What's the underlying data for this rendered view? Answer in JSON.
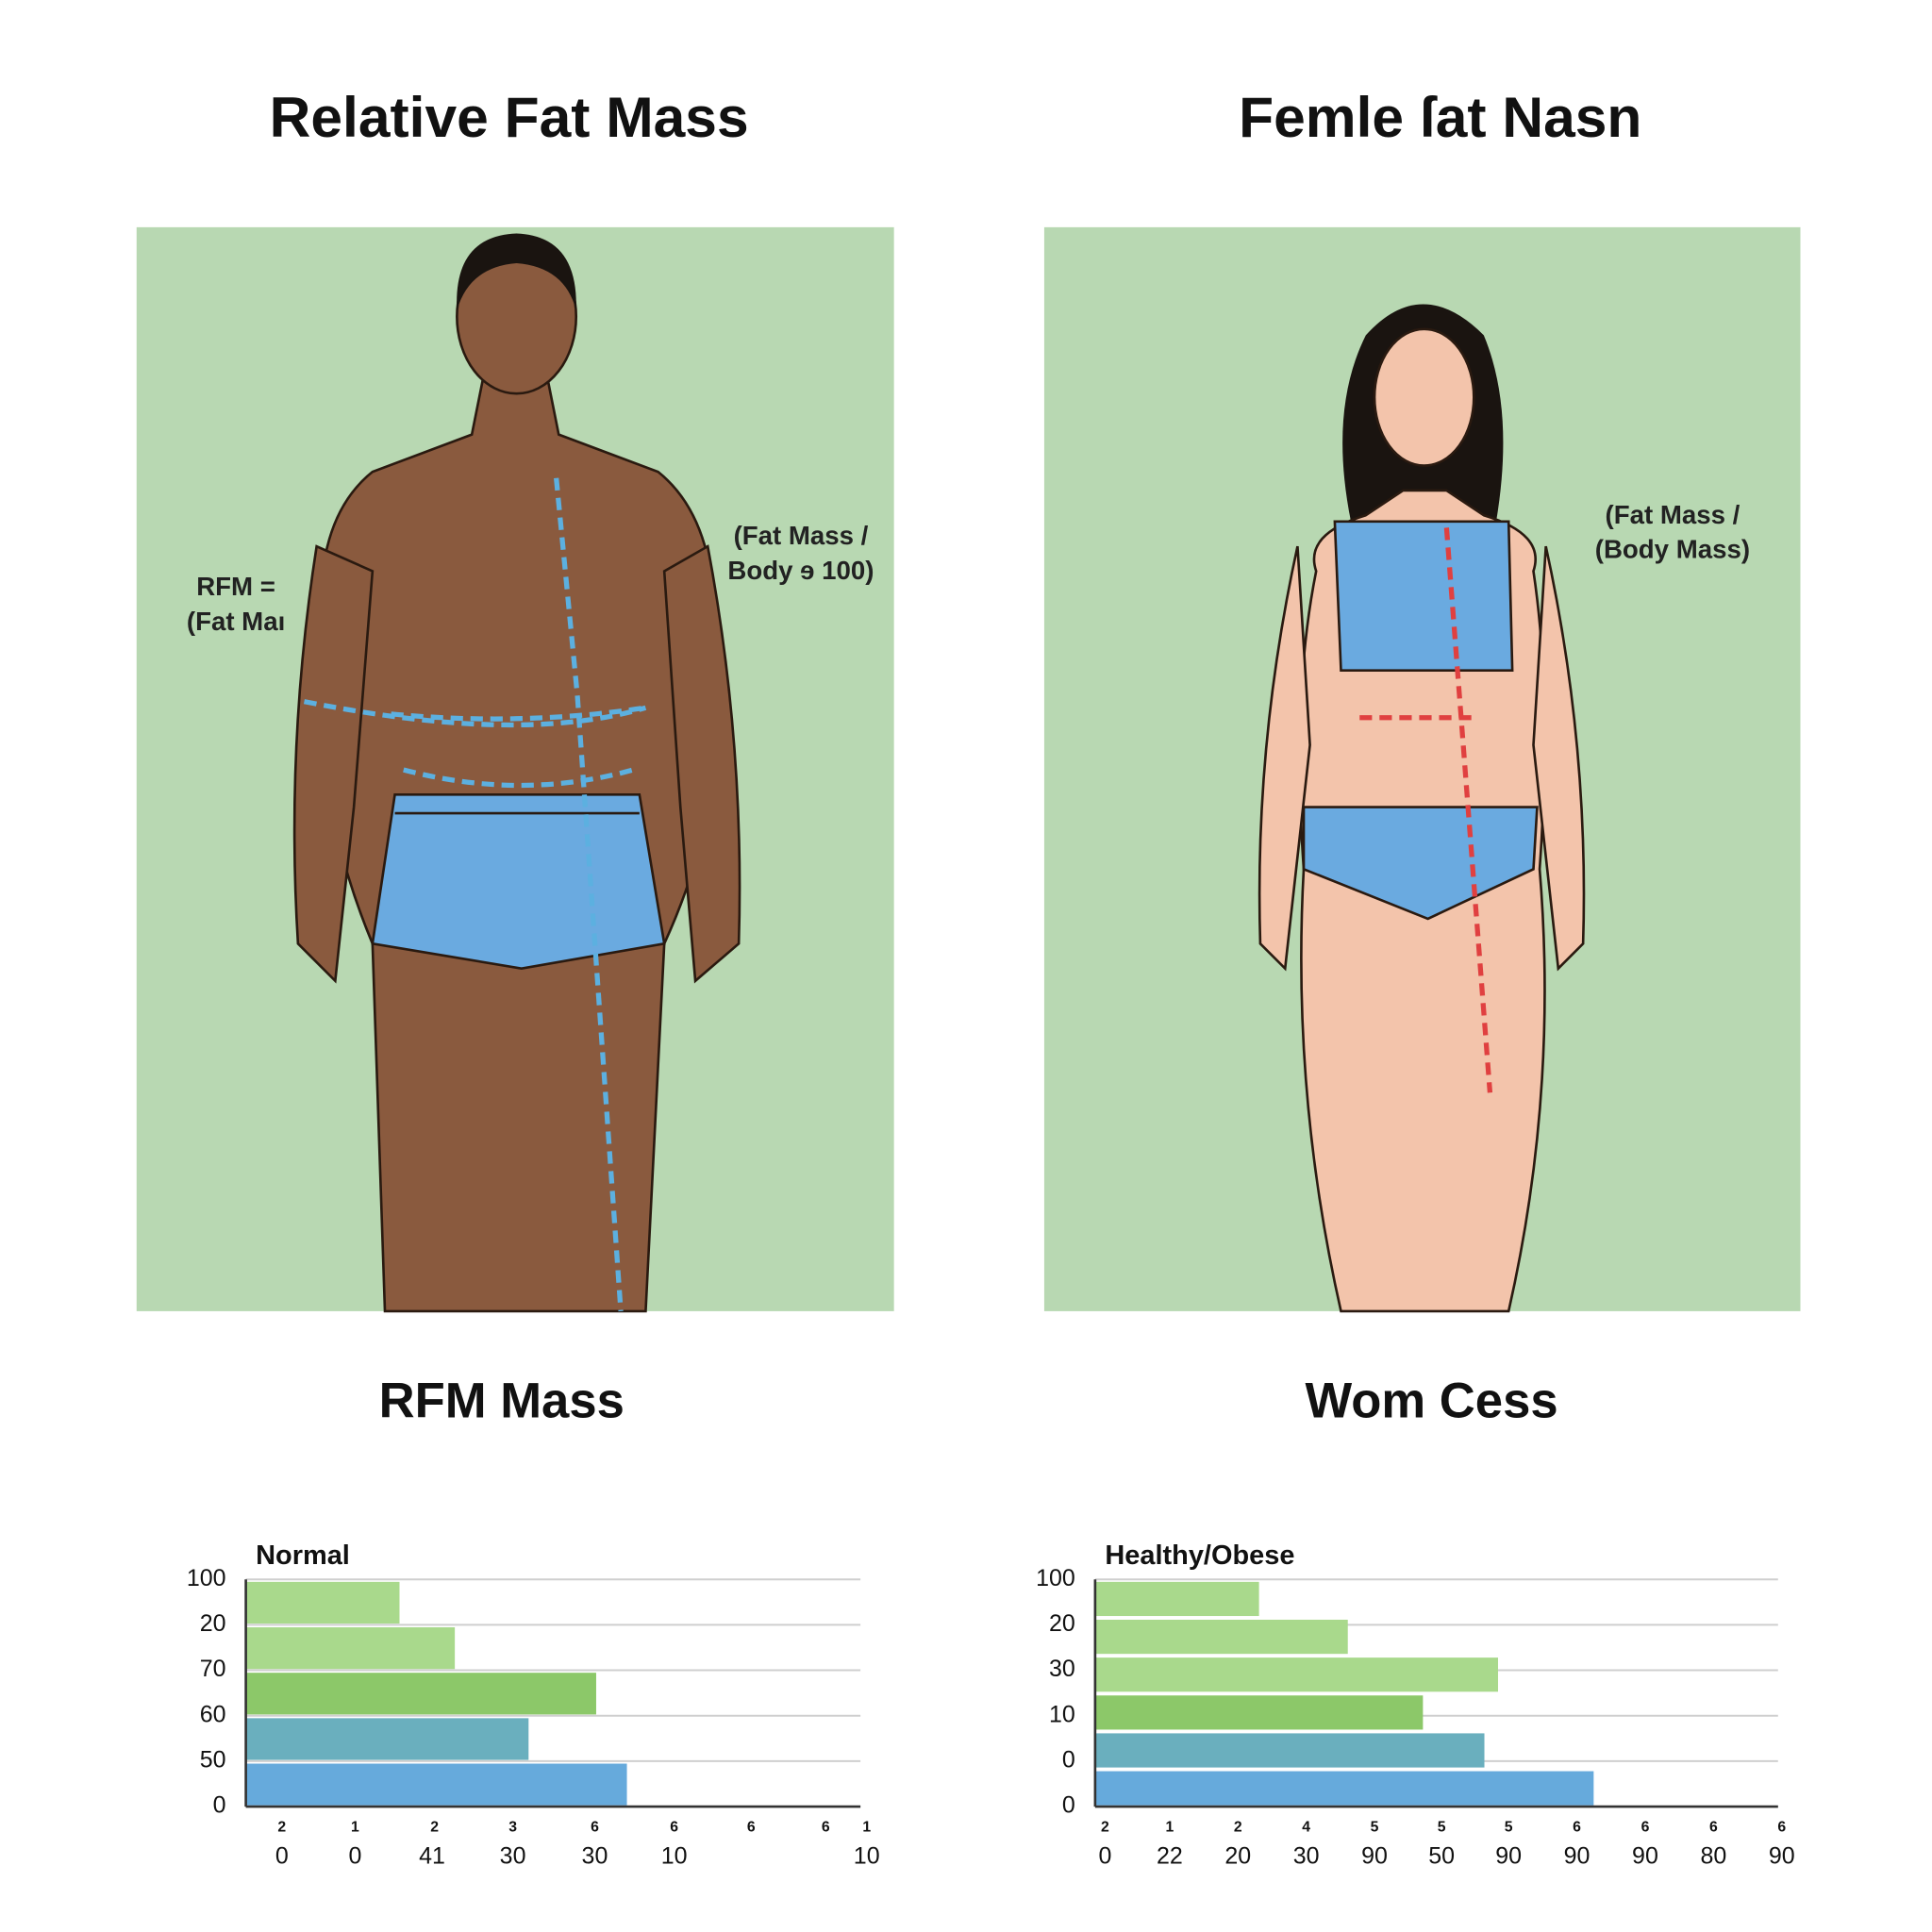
{
  "panels": [
    {
      "title": "Relative Fat Mass",
      "annotations": [
        [
          "RFM =",
          "(Fat Maı"
        ],
        [
          "(Fat Mass /",
          "Body ɘ 100)"
        ]
      ],
      "subtitle": "RFM Mass",
      "chart": {
        "type": "bar",
        "label": "Normal",
        "y_labels": [
          "100",
          "20",
          "70",
          "60",
          "50",
          "0"
        ],
        "values": [
          25,
          34,
          57,
          46,
          62
        ],
        "colors": [
          "#a9d98c",
          "#a9d98c",
          "#8cc869",
          "#6aafbe",
          "#66aadc"
        ],
        "xlim": [
          0,
          100
        ],
        "x_labels_top": [
          "2",
          "1",
          "2",
          "3",
          "6",
          "6",
          "6",
          "6",
          "1"
        ],
        "x_labels_bottom": [
          "0",
          "0",
          "41",
          "30",
          "30",
          "10",
          "10"
        ]
      }
    },
    {
      "title": "Femle ſat Nasn",
      "annotations": [
        [
          "(Fat Mass /",
          "(Body Mass)"
        ]
      ],
      "subtitle": "Wom Cess",
      "chart": {
        "type": "bar",
        "label": "Healthy/Obese",
        "y_labels": [
          "100",
          "20",
          "30",
          "10",
          "0",
          "0"
        ],
        "values": [
          24,
          37,
          59,
          48,
          57,
          73
        ],
        "colors": [
          "#a9d98c",
          "#a9d98c",
          "#a9d98c",
          "#8cc869",
          "#6aafbe",
          "#66aadc"
        ],
        "xlim": [
          0,
          100
        ],
        "x_labels_top": [
          "2",
          "1",
          "2",
          "4",
          "5",
          "5",
          "5",
          "6",
          "6",
          "6",
          "6"
        ],
        "x_labels_bottom": [
          "0",
          "22",
          "20",
          "30",
          "90",
          "50",
          "90",
          "90",
          "90",
          "80",
          "90"
        ]
      }
    }
  ]
}
